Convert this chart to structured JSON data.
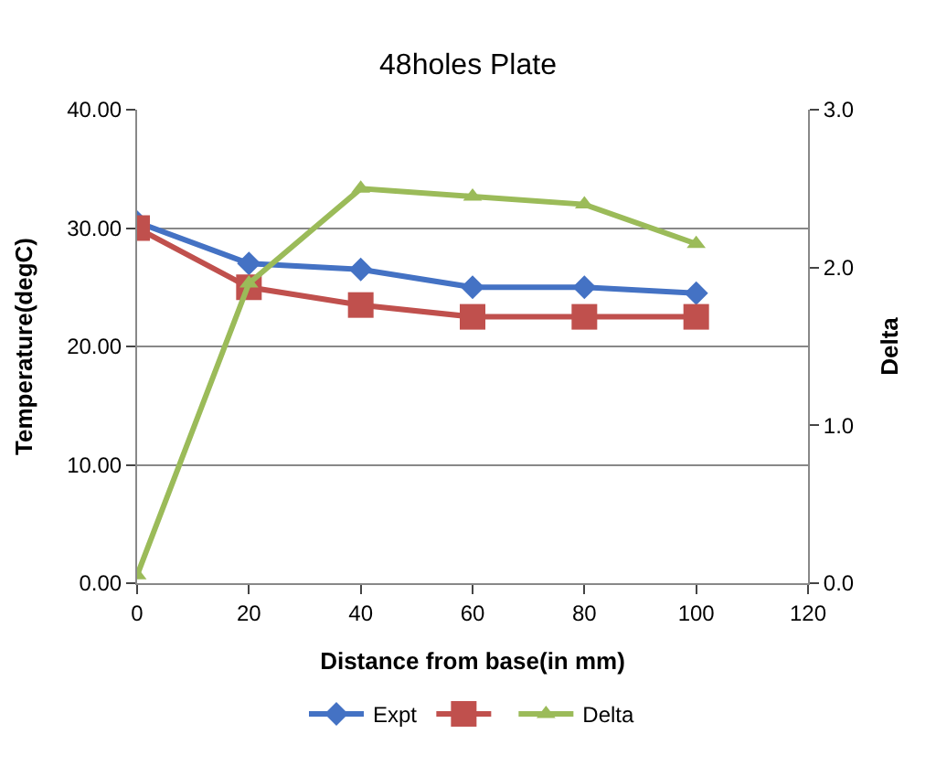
{
  "chart_data": {
    "type": "line",
    "title": "48holes Plate",
    "xlabel": "Distance from base(in mm)",
    "ylabel": "Temperature(degC)",
    "y2label": "Delta",
    "x": [
      0,
      20,
      40,
      60,
      80,
      100
    ],
    "series": [
      {
        "name": "Expt",
        "color": "#4472c4",
        "marker": "diamond",
        "values": [
          30.5,
          27,
          26.5,
          25,
          25,
          24.5
        ]
      },
      {
        "color": "#c0504d",
        "marker": "square",
        "values": [
          30,
          25,
          23.5,
          22.5,
          22.5,
          22.5
        ]
      },
      {
        "name": "Delta",
        "color": "#9bbb59",
        "marker": "triangle",
        "axis": "y2",
        "values": [
          0.05,
          1.9,
          2.5,
          2.45,
          2.4,
          2.15
        ]
      }
    ],
    "xlim": [
      0,
      120
    ],
    "xticks": [
      0,
      20,
      40,
      60,
      80,
      100,
      120
    ],
    "ylim": [
      0,
      40
    ],
    "yticks": [
      {
        "value": 0,
        "label": "0.00"
      },
      {
        "value": 10,
        "label": "10.00"
      },
      {
        "value": 20,
        "label": "20.00"
      },
      {
        "value": 30,
        "label": "30.00"
      },
      {
        "value": 40,
        "label": "40.00"
      }
    ],
    "y2lim": [
      0,
      3
    ],
    "y2ticks": [
      {
        "value": 0,
        "label": "0.0"
      },
      {
        "value": 1,
        "label": "1.0"
      },
      {
        "value": 2,
        "label": "2.0"
      },
      {
        "value": 3,
        "label": "3.0"
      }
    ],
    "grid": "y",
    "legend": "bottom"
  }
}
